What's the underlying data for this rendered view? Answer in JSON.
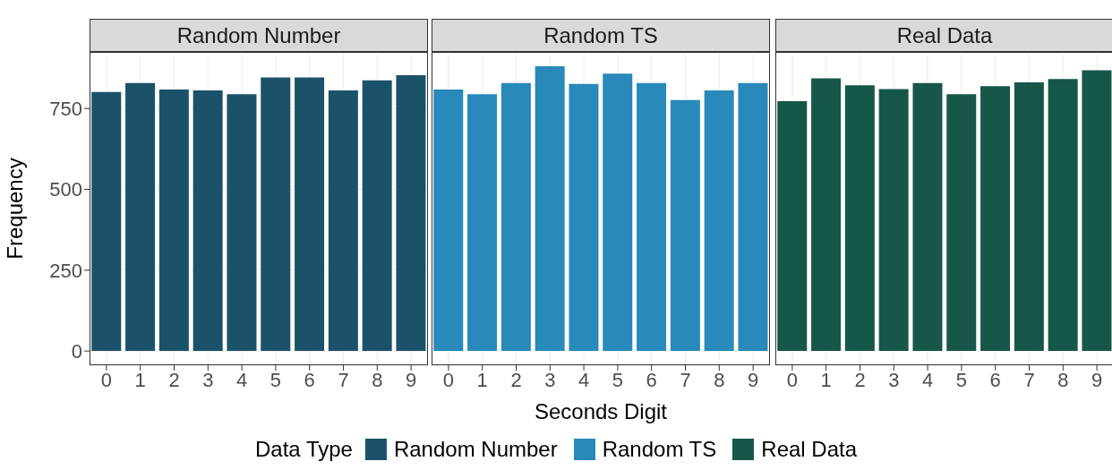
{
  "chart_data": [
    {
      "type": "bar",
      "title": "Random Number",
      "ylabel": "Frequency",
      "legend_title": "Data Type",
      "legend": "bottom",
      "grid": true,
      "categories": [
        "0",
        "1",
        "2",
        "3",
        "4",
        "5",
        "6",
        "7",
        "8",
        "9"
      ],
      "ylim": [
        -44,
        925
      ],
      "yticks": [
        0,
        250,
        500,
        750
      ],
      "series": [
        {
          "name": "Random Number",
          "color": "#1b5269",
          "values": [
            801,
            829,
            809,
            806,
            794,
            846,
            846,
            806,
            837,
            853
          ]
        }
      ]
    },
    {
      "type": "bar",
      "title": "Random TS",
      "xlabel": "Seconds Digit",
      "legend": "bottom",
      "grid": true,
      "tick_labels": "x",
      "categories": [
        "0",
        "1",
        "2",
        "3",
        "4",
        "5",
        "6",
        "7",
        "8",
        "9"
      ],
      "ylim": [
        -44,
        925
      ],
      "yticks": [
        0,
        250,
        500,
        750
      ],
      "series": [
        {
          "name": "Random TS",
          "color": "#2889ba",
          "values": [
            809,
            794,
            829,
            881,
            826,
            858,
            829,
            776,
            806,
            829
          ]
        }
      ]
    },
    {
      "type": "bar",
      "title": "Real Data",
      "legend": "bottom",
      "grid": true,
      "tick_labels": "x",
      "categories": [
        "0",
        "1",
        "2",
        "3",
        "4",
        "5",
        "6",
        "7",
        "8",
        "9"
      ],
      "ylim": [
        -44,
        925
      ],
      "yticks": [
        0,
        250,
        500,
        750
      ],
      "series": [
        {
          "name": "Real Data",
          "color": "#17574a",
          "values": [
            773,
            843,
            822,
            810,
            829,
            794,
            819,
            831,
            841,
            868
          ]
        }
      ]
    }
  ]
}
